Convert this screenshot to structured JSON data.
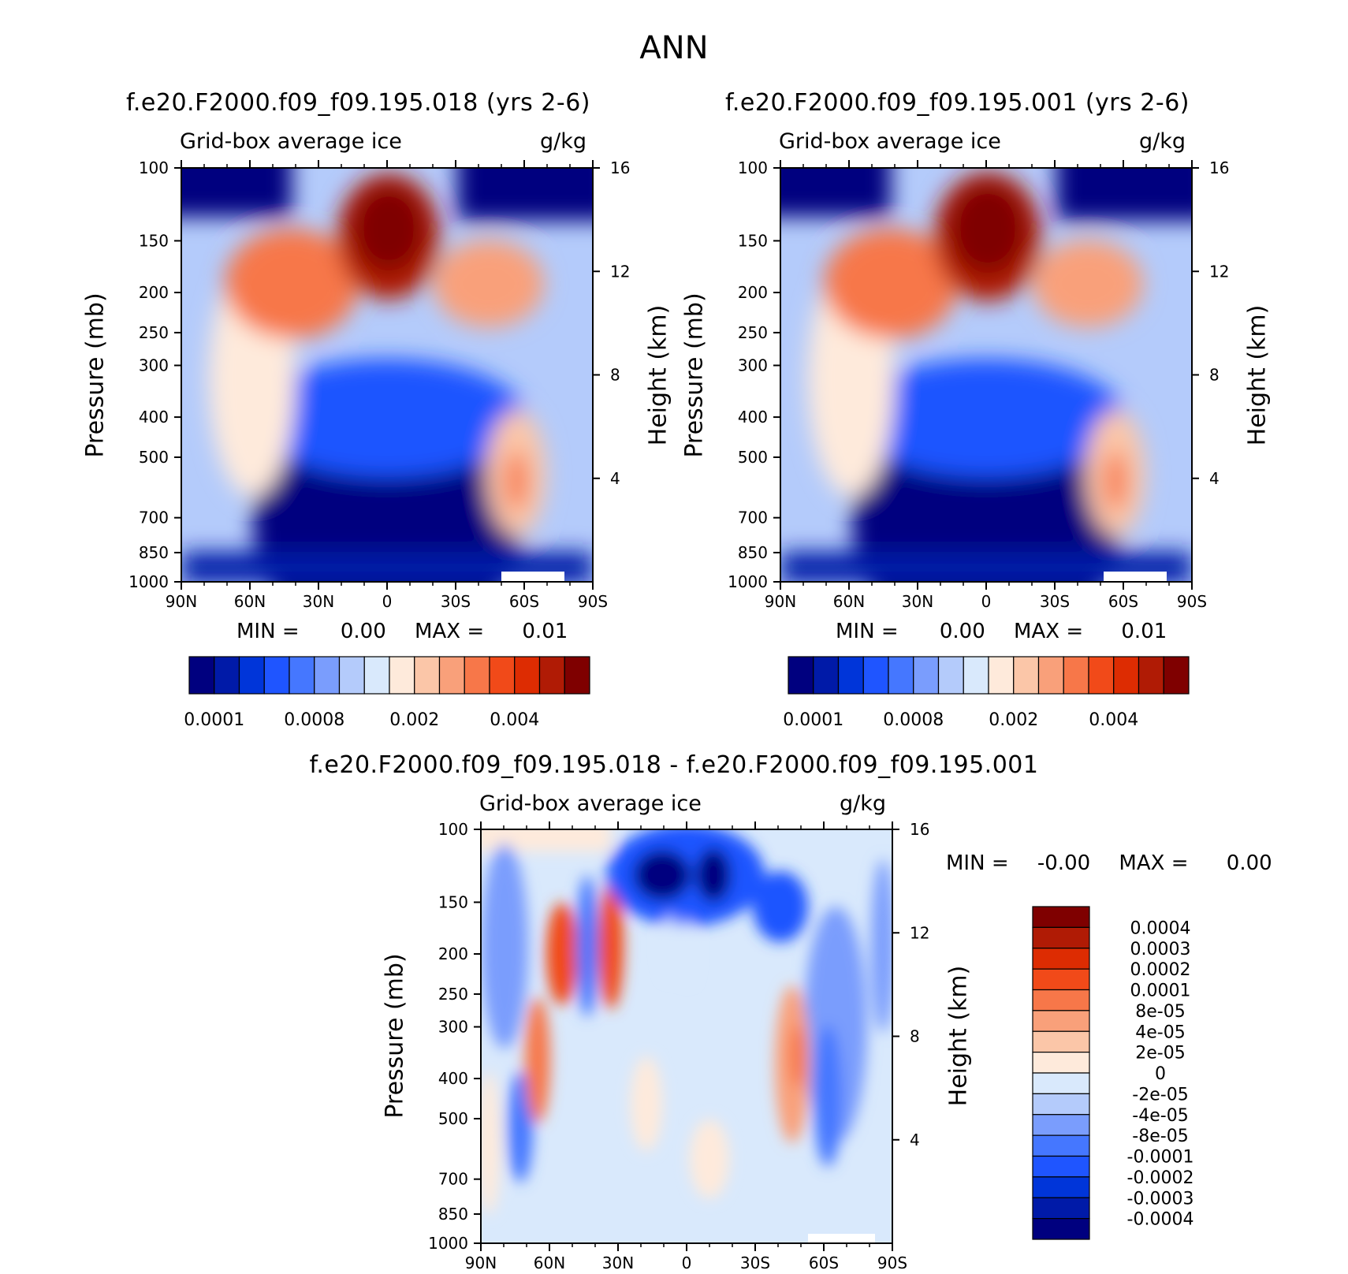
{
  "page_title": "ANN",
  "chart_data": [
    {
      "type": "heatmap",
      "title": "f.e20.F2000.f09_f09.195.018 (yrs 2-6)",
      "subtitle_left": "Grid-box average ice",
      "subtitle_right": "g/kg",
      "xlabel": "",
      "ylabel": "Pressure (mb)",
      "ylabel_right": "Height (km)",
      "x_ticks": [
        "90N",
        "60N",
        "30N",
        "0",
        "30S",
        "60S",
        "90S"
      ],
      "y_ticks": [
        "100",
        "150",
        "200",
        "250",
        "300",
        "400",
        "500",
        "700",
        "850",
        "1000"
      ],
      "y_right_ticks": [
        "16",
        "12",
        "8",
        "4"
      ],
      "stats": {
        "min_label": "MIN =",
        "min_value": "0.00",
        "max_label": "MAX =",
        "max_value": "0.01"
      },
      "colorbar_labels": [
        "0.0001",
        "0.0008",
        "0.002",
        "0.004"
      ],
      "colors": [
        "#00007f",
        "#001aa8",
        "#0035d9",
        "#1f55ff",
        "#4577ff",
        "#7a9dfd",
        "#b4cbfb",
        "#d9e9fc",
        "#feeadb",
        "#fbc6a8",
        "#f9a07a",
        "#f77749",
        "#f14a19",
        "#dd2c02",
        "#b01b05",
        "#7f0000"
      ]
    },
    {
      "type": "heatmap",
      "title": "f.e20.F2000.f09_f09.195.001 (yrs 2-6)",
      "subtitle_left": "Grid-box average ice",
      "subtitle_right": "g/kg",
      "xlabel": "",
      "ylabel": "Pressure (mb)",
      "ylabel_right": "Height (km)",
      "x_ticks": [
        "90N",
        "60N",
        "30N",
        "0",
        "30S",
        "60S",
        "90S"
      ],
      "y_ticks": [
        "100",
        "150",
        "200",
        "250",
        "300",
        "400",
        "500",
        "700",
        "850",
        "1000"
      ],
      "y_right_ticks": [
        "16",
        "12",
        "8",
        "4"
      ],
      "stats": {
        "min_label": "MIN =",
        "min_value": "0.00",
        "max_label": "MAX =",
        "max_value": "0.01"
      },
      "colorbar_labels": [
        "0.0001",
        "0.0008",
        "0.002",
        "0.004"
      ],
      "colors": [
        "#00007f",
        "#001aa8",
        "#0035d9",
        "#1f55ff",
        "#4577ff",
        "#7a9dfd",
        "#b4cbfb",
        "#d9e9fc",
        "#feeadb",
        "#fbc6a8",
        "#f9a07a",
        "#f77749",
        "#f14a19",
        "#dd2c02",
        "#b01b05",
        "#7f0000"
      ]
    },
    {
      "type": "heatmap",
      "title": "f.e20.F2000.f09_f09.195.018 - f.e20.F2000.f09_f09.195.001",
      "subtitle_left": "Grid-box average ice",
      "subtitle_right": "g/kg",
      "xlabel": "",
      "ylabel": "Pressure (mb)",
      "ylabel_right": "Height (km)",
      "x_ticks": [
        "90N",
        "60N",
        "30N",
        "0",
        "30S",
        "60S",
        "90S"
      ],
      "y_ticks": [
        "100",
        "150",
        "200",
        "250",
        "300",
        "400",
        "500",
        "700",
        "850",
        "1000"
      ],
      "y_right_ticks": [
        "16",
        "12",
        "8",
        "4"
      ],
      "stats": {
        "min_label": "MIN =",
        "min_value": "-0.00",
        "max_label": "MAX =",
        "max_value": "0.00"
      },
      "colorbar_labels": [
        "0.0004",
        "0.0003",
        "0.0002",
        "0.0001",
        "8e-05",
        "4e-05",
        "2e-05",
        "0",
        "-2e-05",
        "-4e-05",
        "-8e-05",
        "-0.0001",
        "-0.0002",
        "-0.0003",
        "-0.0004"
      ],
      "colors": [
        "#7f0000",
        "#b01b05",
        "#dd2c02",
        "#f14a19",
        "#f77749",
        "#f9a07a",
        "#fbc6a8",
        "#feeadb",
        "#d9e9fc",
        "#b4cbfb",
        "#7a9dfd",
        "#4577ff",
        "#1f55ff",
        "#0035d9",
        "#001aa8",
        "#00007f"
      ]
    }
  ]
}
